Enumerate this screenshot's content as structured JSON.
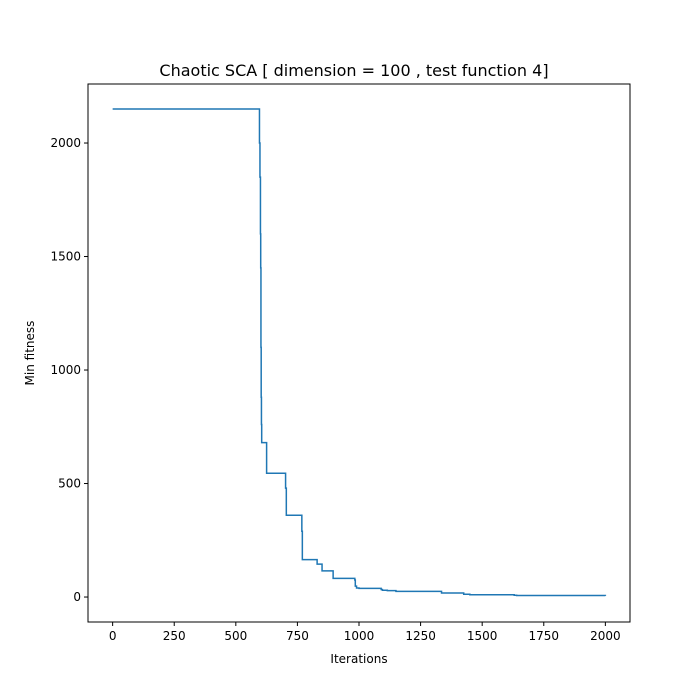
{
  "chart_data": {
    "type": "line",
    "title": "Chaotic SCA [ dimension = 100 ,  test function 4]",
    "xlabel": "Iterations",
    "ylabel": "Min fitness",
    "xlim": [
      -100,
      2100
    ],
    "ylim": [
      -110,
      2260
    ],
    "xticks": [
      0,
      250,
      500,
      750,
      1000,
      1250,
      1500,
      1750,
      2000
    ],
    "yticks": [
      0,
      500,
      1000,
      1500,
      2000
    ],
    "grid": false,
    "colors": {
      "series": "#1f77b4"
    },
    "series": [
      {
        "x": [
          0,
          595,
          596,
          598,
          600,
          601,
          602,
          603,
          604,
          605,
          620,
          625,
          700,
          702,
          705,
          765,
          768,
          770,
          785,
          790,
          820,
          830,
          845,
          850,
          890,
          895,
          980,
          983,
          985,
          990,
          1000,
          1050,
          1080,
          1090,
          1095,
          1110,
          1115,
          1150,
          1200,
          1330,
          1335,
          1420,
          1425,
          1440,
          1450,
          1600,
          1630,
          1640,
          2000
        ],
        "y": [
          2150,
          2150,
          2000,
          1850,
          1600,
          1450,
          1100,
          880,
          760,
          680,
          680,
          545,
          545,
          480,
          360,
          360,
          290,
          165,
          165,
          165,
          165,
          145,
          145,
          115,
          115,
          82,
          82,
          75,
          48,
          40,
          38,
          38,
          38,
          33,
          30,
          30,
          28,
          25,
          25,
          25,
          18,
          18,
          12,
          12,
          10,
          10,
          8,
          7,
          5
        ]
      }
    ]
  }
}
